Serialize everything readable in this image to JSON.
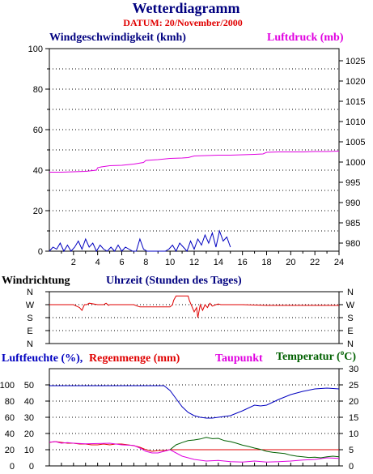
{
  "header": {
    "title": "Wetterdiagramm",
    "subtitle": "DATUM: 20/November/2000"
  },
  "chart_data": [
    {
      "type": "line",
      "id": "wind-pressure",
      "title_left": "Windgeschwindigkeit (kmh)",
      "title_right": "Luftdruck (mb)",
      "xlabel": "Uhrzeit (Stunden des Tages)",
      "x_ticks": [
        "2",
        "4",
        "6",
        "8",
        "10",
        "12",
        "14",
        "16",
        "18",
        "20",
        "22",
        "24"
      ],
      "y_left_ticks": [
        "0",
        "20",
        "40",
        "60",
        "80",
        "100"
      ],
      "y_right_ticks": [
        "980",
        "985",
        "990",
        "995",
        "1000",
        "1005",
        "1010",
        "1015",
        "1020",
        "1025"
      ],
      "xlim": [
        0,
        24
      ],
      "ylim_left": [
        0,
        100
      ],
      "ylim_right": [
        978,
        1028
      ],
      "grid": true,
      "colors": {
        "wind": "#0000c0",
        "pressure": "#e000e0"
      },
      "series": [
        {
          "name": "Windgeschwindigkeit (kmh)",
          "axis": "left",
          "color": "#0000c0",
          "x": [
            0,
            0.3,
            0.6,
            0.9,
            1.2,
            1.5,
            1.8,
            2.1,
            2.4,
            2.7,
            3.0,
            3.3,
            3.6,
            3.9,
            4.2,
            4.5,
            4.8,
            5.1,
            5.4,
            5.7,
            6.0,
            6.3,
            6.6,
            6.9,
            7.2,
            7.5,
            7.8,
            8.1,
            8.4,
            8.7,
            9.0,
            9.3,
            9.6,
            9.9,
            10.2,
            10.5,
            10.8,
            11.1,
            11.4,
            11.7,
            12.0,
            12.3,
            12.6,
            12.9,
            13.2,
            13.5,
            13.8,
            14.1,
            14.4,
            14.7,
            15.0
          ],
          "y": [
            0,
            2,
            1,
            4,
            0,
            3,
            0,
            2,
            5,
            1,
            6,
            2,
            4,
            0,
            3,
            1,
            0,
            2,
            0,
            3,
            0,
            2,
            1,
            0,
            0,
            6,
            1,
            0,
            0,
            0,
            0,
            0,
            0,
            1,
            3,
            0,
            4,
            2,
            0,
            5,
            1,
            6,
            3,
            8,
            4,
            9,
            2,
            10,
            5,
            7,
            2
          ]
        },
        {
          "name": "Luftdruck (mb)",
          "axis": "right",
          "color": "#e000e0",
          "x": [
            0,
            1,
            2,
            3,
            3.9,
            4.0,
            4.3,
            5.0,
            6.0,
            7.0,
            7.8,
            8.0,
            9.0,
            10.0,
            11.0,
            11.5,
            12.0,
            13.0,
            14.0,
            15.0,
            16.0,
            17.0,
            17.7,
            18.0,
            19.0,
            20.0,
            21.0,
            22.0,
            23.0,
            24.0
          ],
          "y": [
            997.5,
            997.5,
            997.6,
            997.7,
            998.0,
            998.6,
            998.8,
            999.1,
            999.2,
            999.5,
            999.9,
            1000.4,
            1000.6,
            1000.9,
            1001.0,
            1001.1,
            1001.5,
            1001.6,
            1001.7,
            1001.7,
            1001.8,
            1001.9,
            1002.0,
            1002.4,
            1002.5,
            1002.5,
            1002.5,
            1002.6,
            1002.6,
            1002.7
          ]
        }
      ]
    },
    {
      "type": "line",
      "id": "wind-direction",
      "title": "Windrichtung",
      "y_ticks": [
        "N",
        "W",
        "S",
        "E",
        "N"
      ],
      "xlim": [
        0,
        24
      ],
      "grid": true,
      "series": [
        {
          "name": "Windrichtung",
          "color": "#e00000",
          "x": [
            0,
            1,
            2,
            2.5,
            2.7,
            2.9,
            3.1,
            3.3,
            4,
            4.5,
            4.7,
            4.9,
            5,
            6,
            7,
            7.3,
            7.5,
            8,
            9,
            10,
            10.2,
            10.3,
            10.5,
            11,
            11.5,
            11.6,
            11.8,
            12,
            12.2,
            12.3,
            12.5,
            12.7,
            12.9,
            13.1,
            13.3,
            13.5,
            13.8,
            14,
            14.2,
            14.5,
            15,
            16,
            18,
            20,
            22,
            24
          ],
          "y": [
            270,
            270,
            270,
            250,
            230,
            270,
            270,
            280,
            270,
            270,
            280,
            265,
            270,
            270,
            270,
            260,
            255,
            255,
            255,
            255,
            270,
            300,
            330,
            330,
            330,
            300,
            260,
            220,
            250,
            180,
            270,
            230,
            270,
            250,
            280,
            260,
            270,
            275,
            270,
            270,
            270,
            270,
            265,
            265,
            265,
            265
          ]
        }
      ]
    },
    {
      "type": "line",
      "id": "humidity-rain-dew-temp",
      "title_left": "Luftfeuchte (%),",
      "title_left2": "Regenmenge (mm)",
      "title_mid": "Taupunkt",
      "title_right": "Temperatur (",
      "title_right_unit": "o",
      "title_right_tail": "C)",
      "y_left_outer_ticks": [
        "0",
        "20",
        "40",
        "60",
        "80",
        "100"
      ],
      "y_left_inner_ticks": [
        "0",
        "10",
        "20",
        "30",
        "40",
        "50"
      ],
      "y_right_ticks": [
        "0",
        "5",
        "10",
        "15",
        "20",
        "25",
        "30"
      ],
      "xlim": [
        0,
        24
      ],
      "ylim_outer": [
        0,
        120
      ],
      "ylim_right": [
        0,
        30
      ],
      "grid": true,
      "colors": {
        "humidity": "#0000c0",
        "rain": "#e00000",
        "dewpoint": "#e000e0",
        "temperature": "#006000"
      },
      "series": [
        {
          "name": "Luftfeuchte",
          "axis": "outer",
          "color": "#0000c0",
          "x": [
            0,
            1,
            2,
            3,
            4,
            5,
            6,
            7,
            8,
            9,
            9.5,
            10,
            10.5,
            11,
            11.5,
            12,
            12.5,
            13,
            13.5,
            14,
            14.5,
            15,
            15.5,
            16,
            17,
            17.5,
            18,
            19,
            20,
            21,
            22,
            23,
            24
          ],
          "y": [
            99,
            99,
            99,
            99,
            99,
            99,
            99,
            99,
            99,
            99,
            99,
            93,
            83,
            73,
            66,
            62,
            60,
            59,
            59,
            60,
            61,
            62,
            65,
            68,
            75,
            74,
            75,
            82,
            88,
            92,
            95,
            96,
            95
          ]
        },
        {
          "name": "Regenmenge",
          "axis": "outer",
          "color": "#e00000",
          "x": [
            0,
            0.5,
            1,
            1.5,
            2,
            2.5,
            3,
            3.5,
            4,
            4.5,
            5,
            5.5,
            6,
            6.5,
            7,
            7.5,
            8,
            8.5,
            9,
            9.5,
            10,
            24
          ],
          "y": [
            29,
            30,
            29,
            28,
            28,
            27,
            27,
            26,
            26,
            27,
            26,
            27,
            27,
            26,
            25,
            23,
            20,
            18,
            19,
            19,
            20,
            20
          ]
        },
        {
          "name": "Taupunkt",
          "axis": "right",
          "color": "#e000e0",
          "x": [
            0,
            0.5,
            1,
            1.5,
            2,
            3,
            4,
            5,
            6,
            7,
            7.5,
            8,
            8.5,
            9,
            9.5,
            10,
            10.5,
            11,
            11.5,
            12,
            13,
            14,
            15,
            16,
            17,
            18,
            19,
            20,
            21,
            22,
            23,
            24
          ],
          "y": [
            7.3,
            7.5,
            7,
            7.2,
            7,
            6.8,
            6.9,
            7,
            6.5,
            6.3,
            5.5,
            4.5,
            4,
            4,
            4.5,
            5,
            4,
            3,
            2.5,
            2,
            1.5,
            1.7,
            1.3,
            1.2,
            1.5,
            1.2,
            1.3,
            1.5,
            1.8,
            2,
            2.5,
            2.3
          ]
        },
        {
          "name": "Temperatur",
          "axis": "right",
          "color": "#006000",
          "x": [
            10,
            10.5,
            11,
            11.5,
            12,
            12.5,
            13,
            13.5,
            14,
            14.5,
            15,
            15.5,
            16,
            16.5,
            17,
            17.5,
            18,
            18.5,
            19,
            19.5,
            20,
            20.5,
            21,
            21.5,
            22,
            22.5,
            23,
            23.5,
            24
          ],
          "y": [
            5,
            6.5,
            7.2,
            7.8,
            8,
            8.3,
            8.8,
            8.4,
            8.5,
            7.8,
            7.5,
            7.0,
            6.4,
            6.0,
            5.5,
            5.1,
            4.5,
            4.2,
            4.0,
            3.8,
            3.3,
            3.0,
            2.8,
            2.6,
            2.7,
            2.5,
            2.8,
            3.0,
            2.8
          ]
        }
      ]
    }
  ]
}
